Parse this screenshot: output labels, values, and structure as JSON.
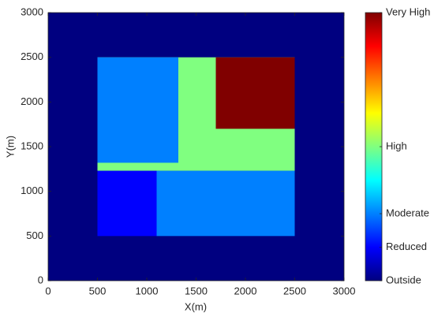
{
  "chart_data": {
    "type": "region-map",
    "xlabel": "X(m)",
    "ylabel": "Y(m)",
    "xlim": [
      0,
      3000
    ],
    "ylim": [
      0,
      3000
    ],
    "xticks": [
      0,
      500,
      1000,
      1500,
      2000,
      2500,
      3000
    ],
    "yticks": [
      0,
      500,
      1000,
      1500,
      2000,
      2500,
      3000
    ],
    "colormap": "jet",
    "clim": [
      0,
      1
    ],
    "cticks": [
      {
        "value": 0,
        "label": "Outside"
      },
      {
        "value": 0.125,
        "label": "Reduced"
      },
      {
        "value": 0.25,
        "label": "Moderate"
      },
      {
        "value": 0.5,
        "label": "High"
      },
      {
        "value": 1,
        "label": "Very High"
      }
    ],
    "regions": [
      {
        "x0": 0,
        "x1": 3000,
        "y0": 0,
        "y1": 3000,
        "value": 0
      },
      {
        "x0": 500,
        "x1": 2500,
        "y0": 1230,
        "y1": 2500,
        "value": 0.5
      },
      {
        "x0": 500,
        "x1": 1320,
        "y0": 1320,
        "y1": 2500,
        "value": 0.25
      },
      {
        "x0": 1700,
        "x1": 2500,
        "y0": 1700,
        "y1": 2500,
        "value": 1
      },
      {
        "x0": 500,
        "x1": 1100,
        "y0": 500,
        "y1": 1230,
        "value": 0.125
      },
      {
        "x0": 1100,
        "x1": 2500,
        "y0": 500,
        "y1": 1230,
        "value": 0.25
      }
    ]
  }
}
